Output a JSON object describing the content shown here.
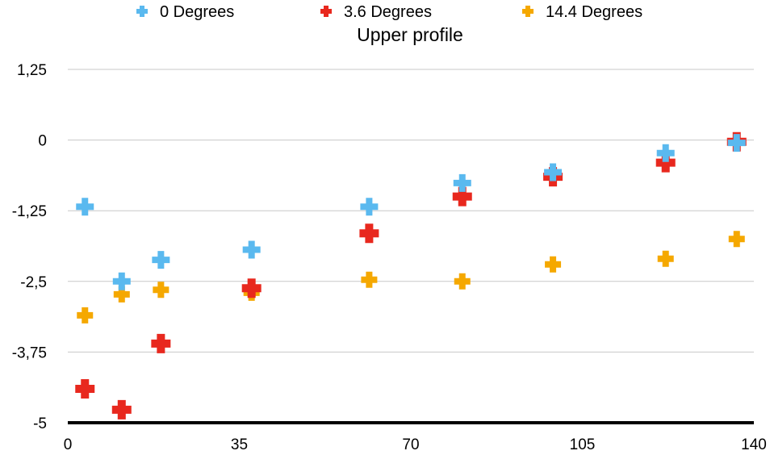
{
  "chart_data": {
    "type": "scatter",
    "title": "Upper profile",
    "xlabel": "",
    "ylabel": "",
    "xlim": [
      0,
      140
    ],
    "ylim": [
      -5,
      1.25
    ],
    "x_ticks": [
      {
        "value": 0,
        "label": "0"
      },
      {
        "value": 35,
        "label": "35"
      },
      {
        "value": 70,
        "label": "70"
      },
      {
        "value": 105,
        "label": "105"
      },
      {
        "value": 140,
        "label": "140"
      }
    ],
    "y_ticks": [
      {
        "value": 1.25,
        "label": "1,25"
      },
      {
        "value": 0,
        "label": "0"
      },
      {
        "value": -1.25,
        "label": "-1,25"
      },
      {
        "value": -2.5,
        "label": "-2,5"
      },
      {
        "value": -3.75,
        "label": "-3,75"
      },
      {
        "value": -5,
        "label": "-5"
      }
    ],
    "grid": "horizontal",
    "legend_position": "top",
    "marker": "plus",
    "series": [
      {
        "name": "0 Degrees",
        "color": "#5ab9ef",
        "points": [
          {
            "x": 3.5,
            "y": -1.18
          },
          {
            "x": 11,
            "y": -2.5
          },
          {
            "x": 19,
            "y": -2.12
          },
          {
            "x": 37.5,
            "y": -1.94
          },
          {
            "x": 61.5,
            "y": -1.18
          },
          {
            "x": 80.5,
            "y": -0.76
          },
          {
            "x": 99,
            "y": -0.57
          },
          {
            "x": 122,
            "y": -0.23
          },
          {
            "x": 136.5,
            "y": -0.05
          }
        ]
      },
      {
        "name": "3.6 Degrees",
        "color": "#e8281e",
        "points": [
          {
            "x": 3.5,
            "y": -4.4
          },
          {
            "x": 11,
            "y": -4.77
          },
          {
            "x": 19,
            "y": -3.6
          },
          {
            "x": 37.5,
            "y": -2.62
          },
          {
            "x": 61.5,
            "y": -1.65
          },
          {
            "x": 80.5,
            "y": -1.0
          },
          {
            "x": 99,
            "y": -0.65
          },
          {
            "x": 122,
            "y": -0.4
          },
          {
            "x": 136.5,
            "y": -0.03
          }
        ]
      },
      {
        "name": "14.4 Degrees",
        "color": "#f5a800",
        "points": [
          {
            "x": 3.5,
            "y": -3.1
          },
          {
            "x": 11,
            "y": -2.73
          },
          {
            "x": 19,
            "y": -2.65
          },
          {
            "x": 37.5,
            "y": -2.7
          },
          {
            "x": 61.5,
            "y": -2.47
          },
          {
            "x": 80.5,
            "y": -2.5
          },
          {
            "x": 99,
            "y": -2.2
          },
          {
            "x": 122,
            "y": -2.1
          },
          {
            "x": 136.5,
            "y": -1.75
          }
        ]
      }
    ]
  }
}
